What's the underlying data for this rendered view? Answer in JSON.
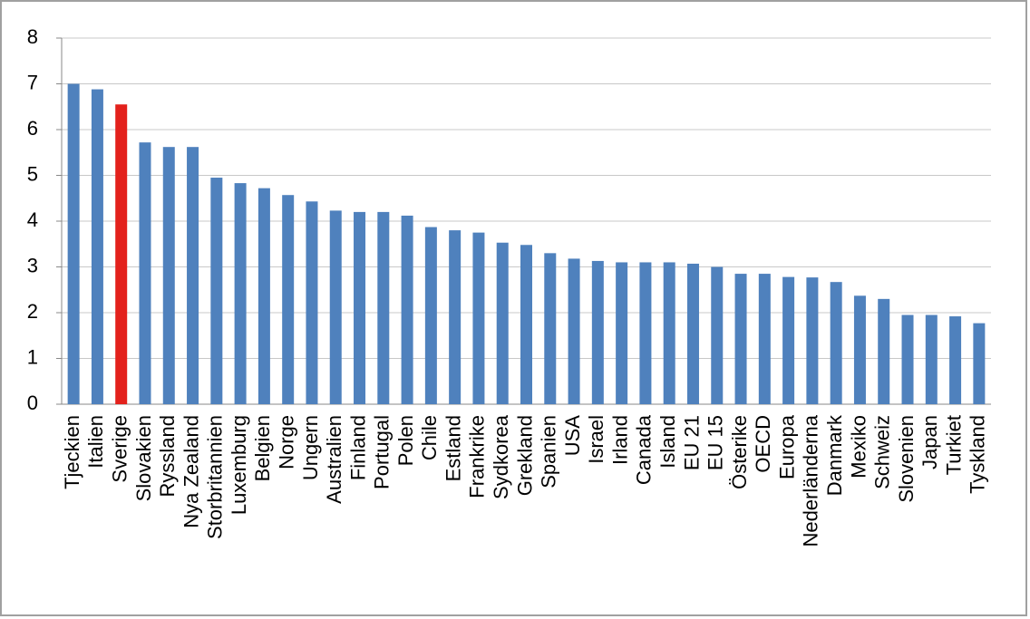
{
  "chart_data": {
    "type": "bar",
    "categories": [
      "Tjeckien",
      "Italien",
      "Sverige",
      "Slovakien",
      "Ryssland",
      "Nya Zealand",
      "Storbritannien",
      "Luxemburg",
      "Belgien",
      "Norge",
      "Ungern",
      "Australien",
      "Finland",
      "Portugal",
      "Polen",
      "Chile",
      "Estland",
      "Frankrike",
      "Sydkorea",
      "Grekland",
      "Spanien",
      "USA",
      "Israel",
      "Irland",
      "Canada",
      "Island",
      "EU 21",
      "EU 15",
      "Österike",
      "OECD",
      "Europa",
      "Nederländerna",
      "Danmark",
      "Mexiko",
      "Schweiz",
      "Slovenien",
      "Japan",
      "Turkiet",
      "Tyskland"
    ],
    "values": [
      7.0,
      6.88,
      6.55,
      5.72,
      5.62,
      5.62,
      4.95,
      4.83,
      4.72,
      4.57,
      4.43,
      4.23,
      4.2,
      4.2,
      4.12,
      3.87,
      3.8,
      3.75,
      3.53,
      3.48,
      3.3,
      3.18,
      3.13,
      3.1,
      3.1,
      3.1,
      3.07,
      3.0,
      2.85,
      2.85,
      2.78,
      2.77,
      2.67,
      2.37,
      2.3,
      1.95,
      1.95,
      1.92,
      1.77
    ],
    "colors": [
      "#4f81bd",
      "#4f81bd",
      "#e3211c",
      "#4f81bd",
      "#4f81bd",
      "#4f81bd",
      "#4f81bd",
      "#4f81bd",
      "#4f81bd",
      "#4f81bd",
      "#4f81bd",
      "#4f81bd",
      "#4f81bd",
      "#4f81bd",
      "#4f81bd",
      "#4f81bd",
      "#4f81bd",
      "#4f81bd",
      "#4f81bd",
      "#4f81bd",
      "#4f81bd",
      "#4f81bd",
      "#4f81bd",
      "#4f81bd",
      "#4f81bd",
      "#4f81bd",
      "#4f81bd",
      "#4f81bd",
      "#4f81bd",
      "#4f81bd",
      "#4f81bd",
      "#4f81bd",
      "#4f81bd",
      "#4f81bd",
      "#4f81bd",
      "#4f81bd",
      "#4f81bd",
      "#4f81bd",
      "#4f81bd"
    ],
    "ylim": [
      0,
      8
    ],
    "yticks": [
      0,
      1,
      2,
      3,
      4,
      5,
      6,
      7,
      8
    ],
    "grid": true
  }
}
